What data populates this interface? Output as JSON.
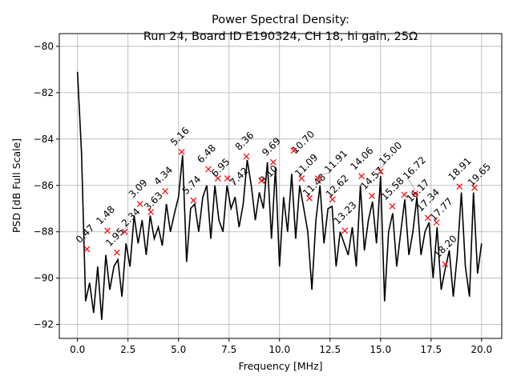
{
  "chart_data": {
    "type": "line",
    "title_line1": "Power Spectral Density:",
    "title_line2": "Run 24, Board ID E190324, CH 18, hi gain, 25Ω",
    "xlabel": "Frequency [MHz]",
    "ylabel": "PSD [dB Full Scale]",
    "xlim": [
      -0.9,
      21.0
    ],
    "ylim": [
      -92.6,
      -79.45
    ],
    "xticks": [
      0.0,
      2.5,
      5.0,
      7.5,
      10.0,
      12.5,
      15.0,
      17.5,
      20.0
    ],
    "xtick_labels": [
      "0.0",
      "2.5",
      "5.0",
      "7.5",
      "10.0",
      "12.5",
      "15.0",
      "17.5",
      "20.0"
    ],
    "yticks": [
      -80,
      -82,
      -84,
      -86,
      -88,
      -90,
      -92
    ],
    "ytick_labels": [
      "−80",
      "−82",
      "−84",
      "−86",
      "−88",
      "−90",
      "−92"
    ],
    "grid": true,
    "line_color": "#000000",
    "marker_color": "#ff0000",
    "trace": {
      "x_step": 0.2,
      "x_start": 0.0,
      "y": [
        -81.1,
        -84.6,
        -91.0,
        -90.2,
        -91.5,
        -89.5,
        -91.8,
        -89.0,
        -90.5,
        -89.5,
        -89.2,
        -90.8,
        -88.5,
        -89.5,
        -87.3,
        -88.5,
        -87.5,
        -89.0,
        -87.3,
        -88.3,
        -87.8,
        -88.6,
        -86.8,
        -88.0,
        -87.2,
        -86.5,
        -84.7,
        -89.3,
        -87.0,
        -86.8,
        -88.0,
        -86.5,
        -86.0,
        -88.3,
        -86.0,
        -87.5,
        -88.0,
        -86.0,
        -87.0,
        -86.5,
        -87.8,
        -86.8,
        -84.9,
        -86.0,
        -87.5,
        -86.3,
        -87.0,
        -85.0,
        -88.3,
        -85.2,
        -89.5,
        -86.5,
        -88.0,
        -85.5,
        -88.3,
        -86.0,
        -87.0,
        -88.0,
        -90.5,
        -87.5,
        -86.0,
        -88.5,
        -87.0,
        -86.9,
        -89.5,
        -88.0,
        -88.5,
        -89.0,
        -87.8,
        -89.5,
        -86.0,
        -88.8,
        -87.5,
        -86.7,
        -88.5,
        -85.6,
        -91.0,
        -88.0,
        -87.2,
        -89.5,
        -88.0,
        -86.6,
        -89.0,
        -88.0,
        -86.5,
        -89.0,
        -88.0,
        -87.6,
        -90.0,
        -87.8,
        -90.5,
        -89.6,
        -88.8,
        -90.8,
        -89.0,
        -86.3,
        -89.5,
        -90.8,
        -86.3,
        -89.8,
        -88.5
      ]
    },
    "peaks": [
      {
        "x": 0.47,
        "y": -88.75,
        "label": "0.47"
      },
      {
        "x": 1.48,
        "y": -87.95,
        "label": "1.48"
      },
      {
        "x": 1.95,
        "y": -88.9,
        "label": "1.95"
      },
      {
        "x": 2.34,
        "y": -88.0,
        "label": "2.34"
      },
      {
        "x": 3.09,
        "y": -86.8,
        "label": "3.09"
      },
      {
        "x": 3.63,
        "y": -87.15,
        "label": "3.63"
      },
      {
        "x": 4.34,
        "y": -86.25,
        "label": "4.34"
      },
      {
        "x": 5.16,
        "y": -84.55,
        "label": "5.16"
      },
      {
        "x": 5.74,
        "y": -86.65,
        "label": "5.74"
      },
      {
        "x": 6.48,
        "y": -85.3,
        "label": "6.48"
      },
      {
        "x": 6.95,
        "y": -85.7,
        "label": "6.95"
      },
      {
        "x": 7.42,
        "y": -85.7,
        "label": "7.42"
      },
      {
        "x": 8.36,
        "y": -84.75,
        "label": "8.36"
      },
      {
        "x": 9.1,
        "y": -85.8,
        "label": "9.10"
      },
      {
        "x": 9.69,
        "y": -85.0,
        "label": "9.69"
      },
      {
        "x": 10.7,
        "y": -84.5,
        "label": "10.70"
      },
      {
        "x": 11.09,
        "y": -85.7,
        "label": "11.09"
      },
      {
        "x": 11.48,
        "y": -86.55,
        "label": "11.48"
      },
      {
        "x": 11.91,
        "y": -85.7,
        "label": "11.91"
      },
      {
        "x": 12.62,
        "y": -86.6,
        "label": "12.62"
      },
      {
        "x": 13.23,
        "y": -87.95,
        "label": "13.23"
      },
      {
        "x": 14.06,
        "y": -85.6,
        "label": "14.06"
      },
      {
        "x": 14.57,
        "y": -86.45,
        "label": "14.57"
      },
      {
        "x": 15.0,
        "y": -85.4,
        "label": "15.00"
      },
      {
        "x": 15.58,
        "y": -86.9,
        "label": "15.58"
      },
      {
        "x": 16.17,
        "y": -86.4,
        "label": "16.17"
      },
      {
        "x": 16.72,
        "y": -86.35,
        "label": "16.72"
      },
      {
        "x": 17.34,
        "y": -87.4,
        "label": "17.34"
      },
      {
        "x": 17.77,
        "y": -87.6,
        "label": "17.77"
      },
      {
        "x": 18.2,
        "y": -89.4,
        "label": "18.20"
      },
      {
        "x": 18.91,
        "y": -86.05,
        "label": "18.91"
      },
      {
        "x": 19.65,
        "y": -86.1,
        "label": "19.65"
      }
    ]
  }
}
